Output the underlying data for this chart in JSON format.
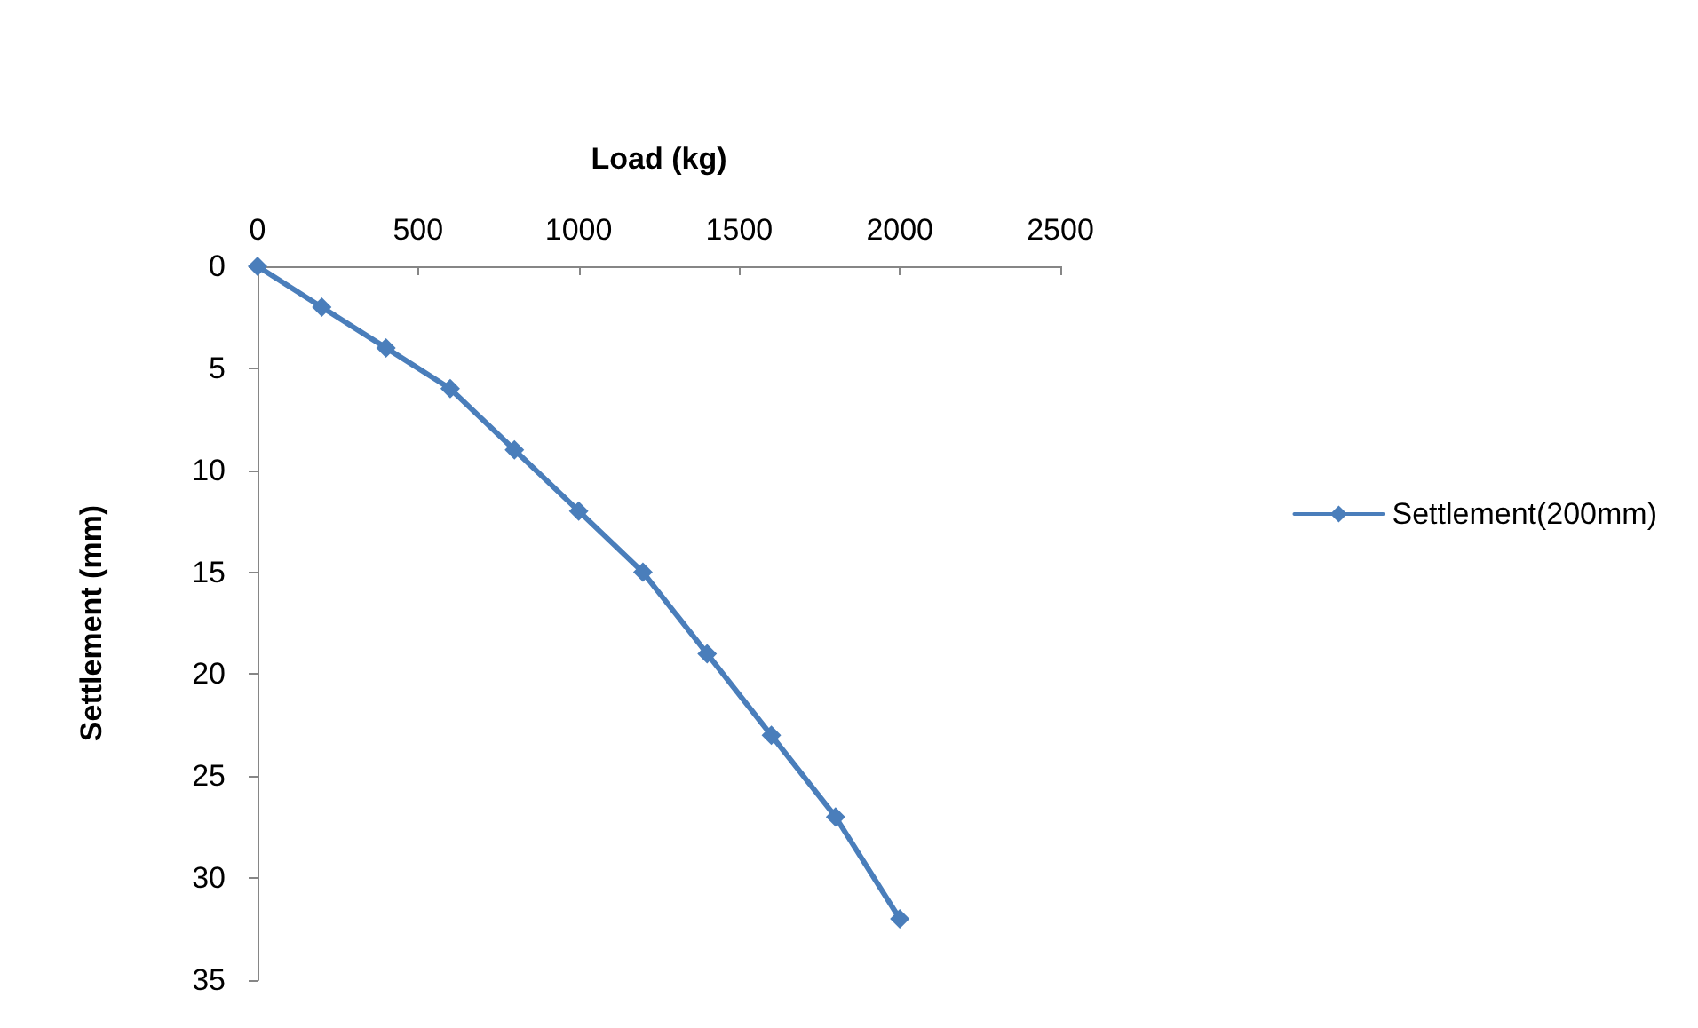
{
  "chart_data": {
    "type": "line",
    "xlabel": "Load (kg)",
    "ylabel": "Settlement (mm)",
    "x": [
      0,
      200,
      400,
      600,
      800,
      1000,
      1200,
      1400,
      1600,
      1800,
      2000
    ],
    "series": [
      {
        "name": "Settlement(200mm)",
        "color": "#4a7ebb",
        "values": [
          0,
          2,
          4,
          6,
          9,
          12,
          15,
          19,
          23,
          27,
          32
        ]
      }
    ],
    "xlim": [
      0,
      2500
    ],
    "xticks": [
      0,
      500,
      1000,
      1500,
      2000,
      2500
    ],
    "ylim": [
      35,
      0
    ],
    "yticks": [
      0,
      5,
      10,
      15,
      20,
      25,
      30,
      35
    ],
    "grid": false,
    "legend": "right",
    "marker": "diamond",
    "line_style": "solid"
  }
}
